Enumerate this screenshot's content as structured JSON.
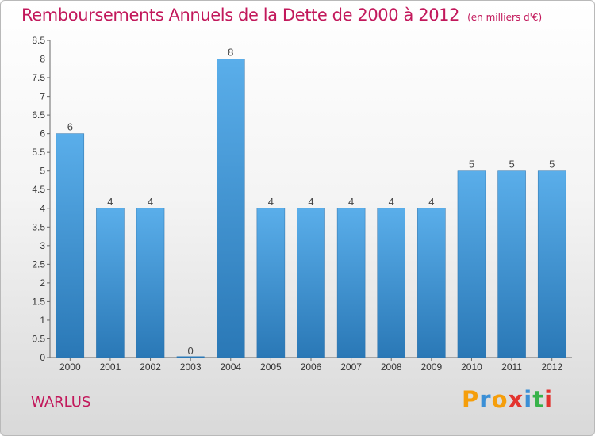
{
  "title": "Remboursements Annuels de la Dette de 2000 à 2012",
  "unit_label": "(en milliers d'€)",
  "commune": "WARLUS",
  "logo": {
    "letters": [
      "P",
      "r",
      "o",
      "x",
      "i",
      "t",
      "i"
    ],
    "colors": [
      "#f59e0b",
      "#3a8fd6",
      "#f59e0b",
      "#e3342f",
      "#3a8fd6",
      "#38b24a",
      "#e3342f"
    ]
  },
  "colors": {
    "bar_light": "#5aaeea",
    "bar_dark": "#2a78b6",
    "title": "#c2185b"
  },
  "chart_data": {
    "type": "bar",
    "title": "Remboursements Annuels de la Dette de 2000 à 2012",
    "categories": [
      "2000",
      "2001",
      "2002",
      "2003",
      "2004",
      "2005",
      "2006",
      "2007",
      "2008",
      "2009",
      "2010",
      "2011",
      "2012"
    ],
    "values": [
      6,
      4,
      4,
      0,
      8,
      4,
      4,
      4,
      4,
      4,
      5,
      5,
      5
    ],
    "data_labels": [
      "6",
      "4",
      "4",
      "0",
      "8",
      "4",
      "4",
      "4",
      "4",
      "4",
      "5",
      "5",
      "5"
    ],
    "ylim": [
      0,
      8.5
    ],
    "yticks": [
      0,
      0.5,
      1,
      1.5,
      2,
      2.5,
      3,
      3.5,
      4,
      4.5,
      5,
      5.5,
      6,
      6.5,
      7,
      7.5,
      8,
      8.5
    ],
    "ytick_labels": [
      "0",
      "0.5",
      "1",
      "1.5",
      "2",
      "2.5",
      "3",
      "3.5",
      "4",
      "4.5",
      "5",
      "5.5",
      "6",
      "6.5",
      "7",
      "7.5",
      "8",
      "8.5"
    ],
    "grid": false,
    "legend": "none"
  }
}
